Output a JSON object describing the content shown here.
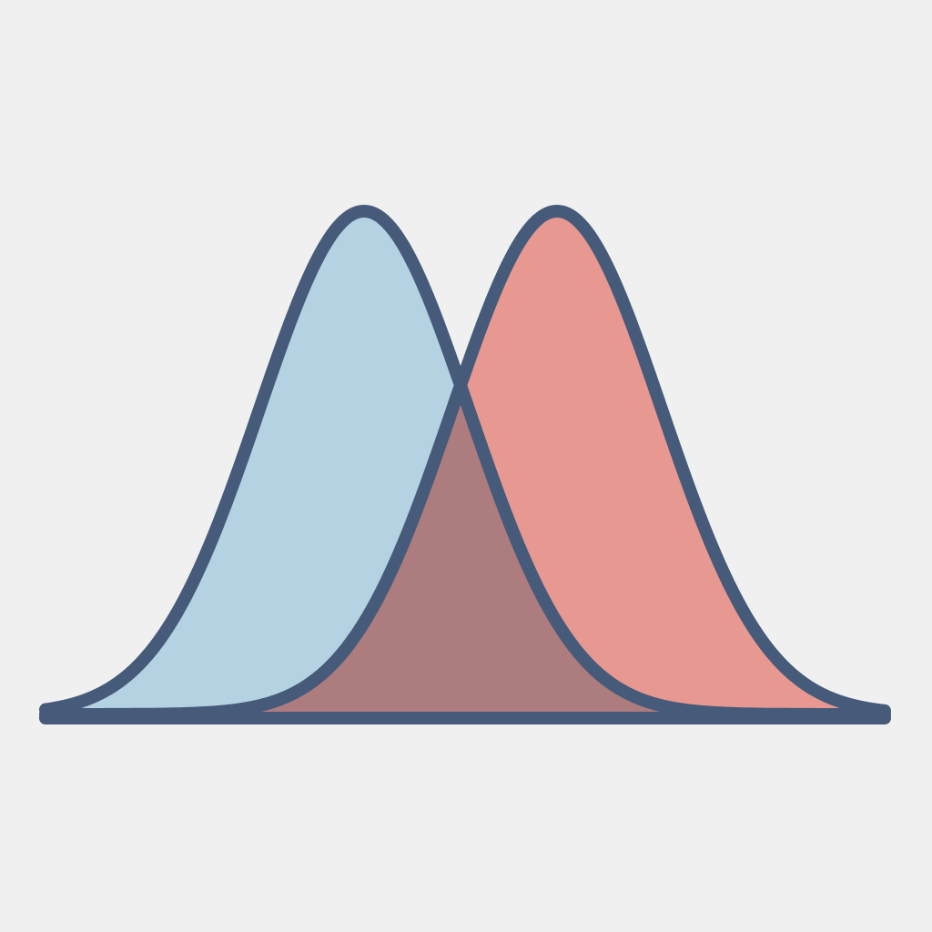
{
  "illustration": {
    "subject": "two-overlapping-bell-curves-icon",
    "colors": {
      "background": "#f0f0f0",
      "left_curve_fill": "#b5d2e3",
      "right_curve_fill": "#e69891",
      "overlap_fill": "#ac7c7f",
      "outline": "#465a79"
    }
  }
}
